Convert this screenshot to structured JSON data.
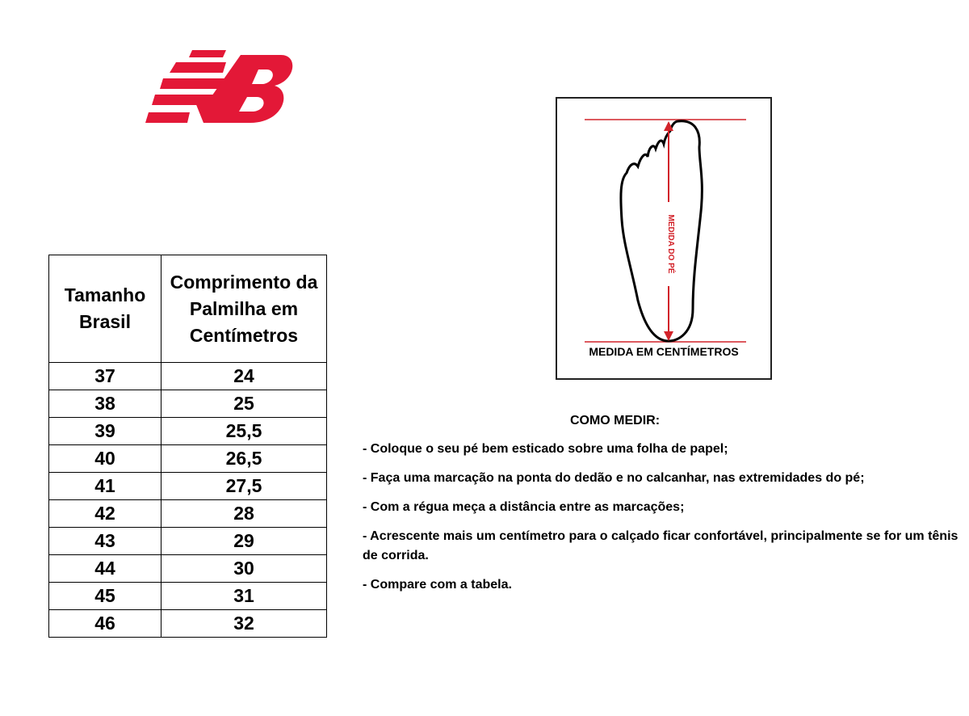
{
  "logo": {
    "text": "NB",
    "color": "#e31837"
  },
  "table": {
    "headers": [
      "Tamanho Brasil",
      "Comprimento da Palmilha em Centímetros"
    ],
    "rows": [
      [
        "37",
        "24"
      ],
      [
        "38",
        "25"
      ],
      [
        "39",
        "25,5"
      ],
      [
        "40",
        "26,5"
      ],
      [
        "41",
        "27,5"
      ],
      [
        "42",
        "28"
      ],
      [
        "43",
        "29"
      ],
      [
        "44",
        "30"
      ],
      [
        "45",
        "31"
      ],
      [
        "46",
        "32"
      ]
    ]
  },
  "diagram": {
    "vertical_label": "MEDIDA DO PÉ",
    "caption": "MEDIDA EM CENTÍMETROS",
    "accent": "#d2232a"
  },
  "instructions": {
    "title": "COMO MEDIR:",
    "steps": [
      "- Coloque o seu pé bem esticado sobre uma folha de papel;",
      "- Faça uma marcação na ponta do dedão e no calcanhar, nas extremidades do pé;",
      "- Com a régua meça a distância entre as marcações;",
      "- Acrescente mais um centímetro para o calçado ficar confortável, principalmente se for um tênis de corrida.",
      "- Compare com a tabela."
    ]
  }
}
